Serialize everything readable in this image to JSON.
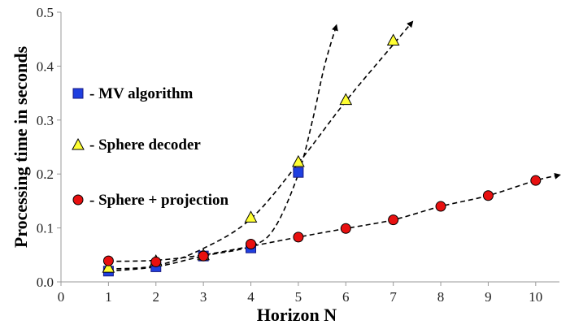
{
  "chart_data": {
    "type": "scatter",
    "xlabel": "Horizon N",
    "ylabel": "Processing time in seconds",
    "xlim": [
      0,
      10.5
    ],
    "ylim": [
      0,
      0.5
    ],
    "x_ticks": [
      "0",
      "1",
      "2",
      "3",
      "4",
      "5",
      "6",
      "7",
      "8",
      "9",
      "10"
    ],
    "y_ticks": [
      "0.0",
      "0.1",
      "0.2",
      "0.3",
      "0.4",
      "0.5"
    ],
    "grid": false,
    "legend_position": "left",
    "series": [
      {
        "name": "- MV algorithm",
        "marker": "square",
        "color": "#1f3fe0",
        "x": [
          1,
          2,
          3,
          4,
          5
        ],
        "y": [
          0.02,
          0.028,
          0.048,
          0.063,
          0.203
        ]
      },
      {
        "name": "- Sphere decoder",
        "marker": "triangle",
        "color": "#ffff33",
        "x": [
          1,
          2,
          3,
          4,
          5,
          6,
          7
        ],
        "y": [
          0.027,
          0.039,
          0.05,
          0.12,
          0.223,
          0.338,
          0.448
        ]
      },
      {
        "name": "- Sphere + projection",
        "marker": "circle",
        "color": "#e81010",
        "x": [
          1,
          2,
          3,
          4,
          5,
          6,
          7,
          8,
          9,
          10
        ],
        "y": [
          0.039,
          0.037,
          0.048,
          0.07,
          0.083,
          0.099,
          0.115,
          0.14,
          0.16,
          0.188
        ]
      }
    ],
    "trend_lines": [
      {
        "series": "- MV algorithm",
        "style": "dashed-arrow",
        "x": [
          1,
          2,
          3,
          4,
          4.5,
          5,
          5.3,
          5.55,
          5.8
        ],
        "y": [
          0.02,
          0.028,
          0.048,
          0.066,
          0.1,
          0.2,
          0.3,
          0.4,
          0.475
        ]
      },
      {
        "series": "- Sphere decoder",
        "style": "dashed-arrow",
        "x": [
          1,
          2,
          3,
          4,
          5,
          6,
          7,
          7.4
        ],
        "y": [
          0.024,
          0.03,
          0.062,
          0.117,
          0.22,
          0.335,
          0.44,
          0.482
        ]
      },
      {
        "series": "- Sphere + projection",
        "style": "dashed-arrow",
        "x": [
          1,
          2,
          3,
          4,
          5,
          6,
          7,
          8,
          9,
          10,
          10.5
        ],
        "y": [
          0.038,
          0.04,
          0.05,
          0.066,
          0.083,
          0.099,
          0.115,
          0.14,
          0.16,
          0.188,
          0.198
        ]
      }
    ]
  }
}
